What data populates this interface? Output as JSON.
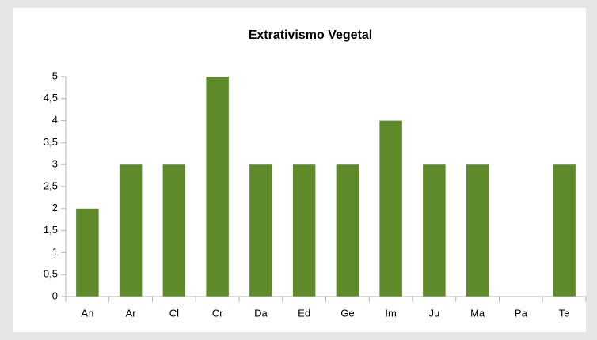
{
  "chart_data": {
    "type": "bar",
    "title": "Extrativismo Vegetal",
    "categories": [
      "An",
      "Ar",
      "Cl",
      "Cr",
      "Da",
      "Ed",
      "Ge",
      "Im",
      "Ju",
      "Ma",
      "Pa",
      "Te"
    ],
    "values": [
      2,
      3,
      3,
      5,
      3,
      3,
      3,
      4,
      3,
      3,
      0,
      3
    ],
    "color": "#5e8a2a",
    "ylim": [
      0,
      5
    ],
    "yticks": [
      0,
      {
        "value": 0.5,
        "label": "0,5"
      },
      1,
      {
        "value": 1.5,
        "label": "1,5"
      },
      2,
      {
        "value": 2.5,
        "label": "2,5"
      },
      3,
      {
        "value": 3.5,
        "label": "3,5"
      },
      4,
      {
        "value": 4.5,
        "label": "4,5"
      },
      5
    ],
    "grid": false
  }
}
